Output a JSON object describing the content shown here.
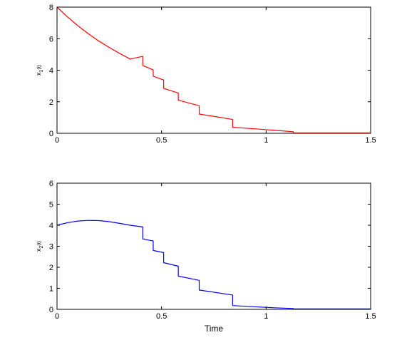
{
  "figure": {
    "xlabel": "Time"
  },
  "chart_data": [
    {
      "type": "line",
      "title": "",
      "xlabel": "",
      "ylabel": "x1(t)",
      "ylabel_main": "x",
      "ylabel_sub": "1",
      "ylabel_arg": "(t)",
      "xlim": [
        0,
        1.5
      ],
      "ylim": [
        0,
        8
      ],
      "xticks": [
        0,
        0.5,
        1,
        1.5
      ],
      "xtick_labels": [
        "0",
        "0.5",
        "1",
        "1.5"
      ],
      "yticks": [
        0,
        2,
        4,
        6,
        8
      ],
      "ytick_labels": [
        "0",
        "2",
        "4",
        "6",
        "8"
      ],
      "grid": false,
      "legend": "none",
      "series": [
        {
          "color": "#ff0000",
          "x": [
            0,
            0.05,
            0.1,
            0.15,
            0.2,
            0.25,
            0.3,
            0.35,
            0.41,
            0.41,
            0.46,
            0.46,
            0.51,
            0.51,
            0.58,
            0.58,
            0.68,
            0.68,
            0.84,
            0.84,
            0.95,
            1.05,
            1.13,
            1.13,
            1.5
          ],
          "y": [
            8.0,
            7.38,
            6.82,
            6.31,
            5.85,
            5.44,
            5.06,
            4.71,
            4.88,
            4.3,
            4.02,
            3.62,
            3.38,
            2.85,
            2.55,
            2.1,
            1.75,
            1.22,
            0.88,
            0.38,
            0.28,
            0.18,
            0.1,
            0.02,
            0.02
          ]
        }
      ]
    },
    {
      "type": "line",
      "title": "",
      "xlabel": "Time",
      "ylabel": "x2(t)",
      "ylabel_main": "x",
      "ylabel_sub": "2",
      "ylabel_arg": "(t)",
      "xlim": [
        0,
        1.5
      ],
      "ylim": [
        0,
        6
      ],
      "xticks": [
        0,
        0.5,
        1,
        1.5
      ],
      "xtick_labels": [
        "0",
        "0.5",
        "1",
        "1.5"
      ],
      "yticks": [
        0,
        1,
        2,
        3,
        4,
        5,
        6
      ],
      "ytick_labels": [
        "0",
        "1",
        "2",
        "3",
        "4",
        "5",
        "6"
      ],
      "grid": false,
      "legend": "none",
      "series": [
        {
          "color": "#0000ff",
          "x": [
            0,
            0.05,
            0.1,
            0.15,
            0.2,
            0.25,
            0.3,
            0.35,
            0.41,
            0.41,
            0.46,
            0.46,
            0.51,
            0.51,
            0.58,
            0.58,
            0.68,
            0.68,
            0.84,
            0.84,
            0.95,
            1.05,
            1.13,
            1.13,
            1.5
          ],
          "y": [
            4.0,
            4.12,
            4.2,
            4.23,
            4.22,
            4.17,
            4.09,
            4.0,
            3.92,
            3.35,
            3.25,
            2.8,
            2.7,
            2.22,
            2.05,
            1.58,
            1.38,
            0.92,
            0.68,
            0.18,
            0.12,
            0.07,
            0.04,
            0.02,
            0.02
          ]
        }
      ]
    }
  ]
}
